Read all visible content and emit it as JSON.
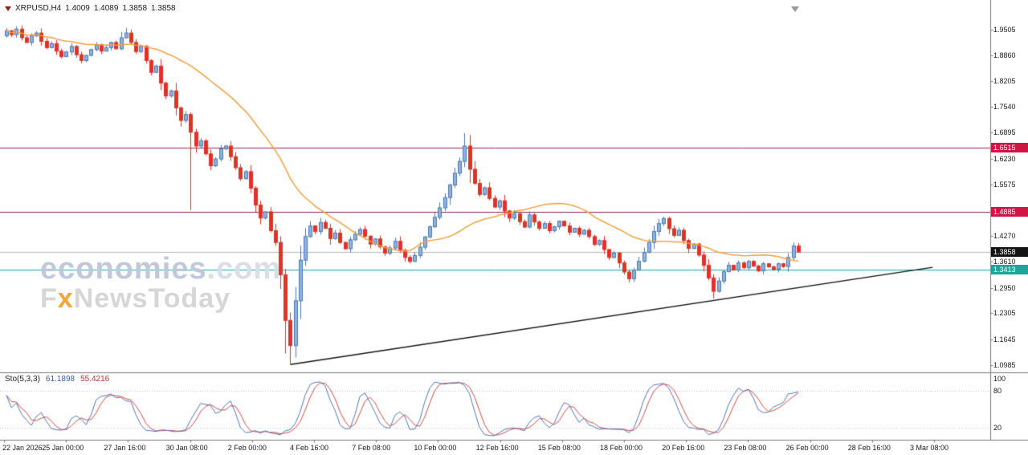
{
  "header": {
    "symbol": "XRPUSD,H4",
    "open": "1.4009",
    "high": "1.4089",
    "low": "1.3858",
    "close": "1.3858"
  },
  "watermark": {
    "line1_main": "economies",
    "line1_suffix": ".com",
    "line2_f": "F",
    "line2_x": "x",
    "line2_rest": "NewsToday"
  },
  "colors": {
    "bull_fill": "#8fb3dc",
    "bull_border": "#4a79b1",
    "bear": "#e03226",
    "ma": "#f0a13e",
    "trendline": "#111111",
    "resistance_line": "#8e2957",
    "resistance_badge": "#d01545",
    "support_line": "#1fa39a",
    "support_badge": "#1fa39a",
    "current_line": "#b8b8b8",
    "current_badge": "#141414",
    "stoch_k": "#4f74b8",
    "stoch_d": "#d4483e",
    "axis": "#7a7a7a",
    "stoch_level_dots": "#c0c0c0"
  },
  "chart_data": {
    "type": "candlestick",
    "symbol": "XRPUSD",
    "timeframe": "H4",
    "title": "XRPUSD,H4 1.4009 1.4089 1.3858 1.3858",
    "ylim": [
      1.0985,
      1.9505
    ],
    "price_axis_ticks": [
      1.9505,
      1.886,
      1.8205,
      1.754,
      1.6895,
      1.623,
      1.5575,
      1.492,
      1.427,
      1.361,
      1.295,
      1.2305,
      1.1645,
      1.0985
    ],
    "time_axis_labels": [
      "22 Jan 2026",
      "25 Jan 00:00",
      "27 Jan 16:00",
      "30 Jan 08:00",
      "2 Feb 00:00",
      "4 Feb 16:00",
      "7 Feb 08:00",
      "10 Feb 00:00",
      "12 Feb 16:00",
      "15 Feb 08:00",
      "18 Feb 00:00",
      "20 Feb 16:00",
      "23 Feb 08:00",
      "26 Feb 00:00",
      "28 Feb 16:00",
      "3 Mar 08:00"
    ],
    "levels": [
      {
        "value": 1.6515,
        "label": "1.6515",
        "type": "resistance"
      },
      {
        "value": 1.4885,
        "label": "1.4885",
        "type": "resistance"
      },
      {
        "value": 1.3413,
        "label": "1.3413",
        "type": "support"
      }
    ],
    "current_price": {
      "value": 1.3858,
      "label": "1.3858"
    },
    "trendline": {
      "from_bar": 57,
      "from_price": 1.1,
      "to_bar": 186,
      "to_price": 1.347
    },
    "candles": {
      "first_open": 1.935,
      "closes": [
        1.948,
        1.938,
        1.952,
        1.93,
        1.918,
        1.935,
        1.942,
        1.921,
        1.905,
        1.915,
        1.896,
        1.882,
        1.894,
        1.908,
        1.887,
        1.872,
        1.885,
        1.9,
        1.912,
        1.896,
        1.905,
        1.918,
        1.902,
        1.93,
        1.942,
        1.918,
        1.895,
        1.908,
        1.872,
        1.842,
        1.858,
        1.815,
        1.782,
        1.795,
        1.752,
        1.72,
        1.735,
        1.69,
        1.655,
        1.668,
        1.635,
        1.605,
        1.622,
        1.648,
        1.655,
        1.628,
        1.6,
        1.572,
        1.59,
        1.548,
        1.505,
        1.472,
        1.488,
        1.44,
        1.41,
        1.328,
        1.212,
        1.148,
        1.262,
        1.365,
        1.425,
        1.452,
        1.438,
        1.461,
        1.446,
        1.42,
        1.434,
        1.41,
        1.394,
        1.417,
        1.431,
        1.443,
        1.426,
        1.406,
        1.419,
        1.399,
        1.383,
        1.396,
        1.413,
        1.39,
        1.372,
        1.362,
        1.377,
        1.398,
        1.424,
        1.45,
        1.474,
        1.498,
        1.524,
        1.556,
        1.586,
        1.616,
        1.655,
        1.596,
        1.56,
        1.532,
        1.549,
        1.522,
        1.5,
        1.516,
        1.49,
        1.472,
        1.483,
        1.463,
        1.449,
        1.48,
        1.462,
        1.446,
        1.458,
        1.44,
        1.45,
        1.464,
        1.452,
        1.436,
        1.446,
        1.431,
        1.441,
        1.425,
        1.405,
        1.415,
        1.392,
        1.372,
        1.383,
        1.358,
        1.335,
        1.318,
        1.34,
        1.362,
        1.385,
        1.41,
        1.438,
        1.458,
        1.471,
        1.445,
        1.428,
        1.441,
        1.415,
        1.395,
        1.406,
        1.378,
        1.352,
        1.32,
        1.286,
        1.312,
        1.336,
        1.352,
        1.34,
        1.358,
        1.346,
        1.362,
        1.35,
        1.338,
        1.356,
        1.348,
        1.342,
        1.356,
        1.349,
        1.372,
        1.4009,
        1.3858
      ],
      "specials": {
        "24": {
          "h": 1.955
        },
        "37": {
          "l": 1.492
        },
        "56": {
          "l": 1.128
        },
        "57": {
          "l": 1.102
        },
        "59": {
          "h": 1.402
        },
        "92": {
          "h": 1.688
        },
        "102": {
          "h": 1.493
        },
        "142": {
          "l": 1.268
        },
        "159": {
          "h": 1.4089,
          "l": 1.3858
        }
      }
    },
    "ma": {
      "period": 26
    },
    "stochastic": {
      "label": "Sto(5,3,3)",
      "k_value": "61.1898",
      "d_value": "55.4216",
      "axis_labels": [
        "100",
        "80",
        "20"
      ],
      "levels": [
        80,
        20
      ],
      "range": [
        0,
        100
      ]
    }
  }
}
